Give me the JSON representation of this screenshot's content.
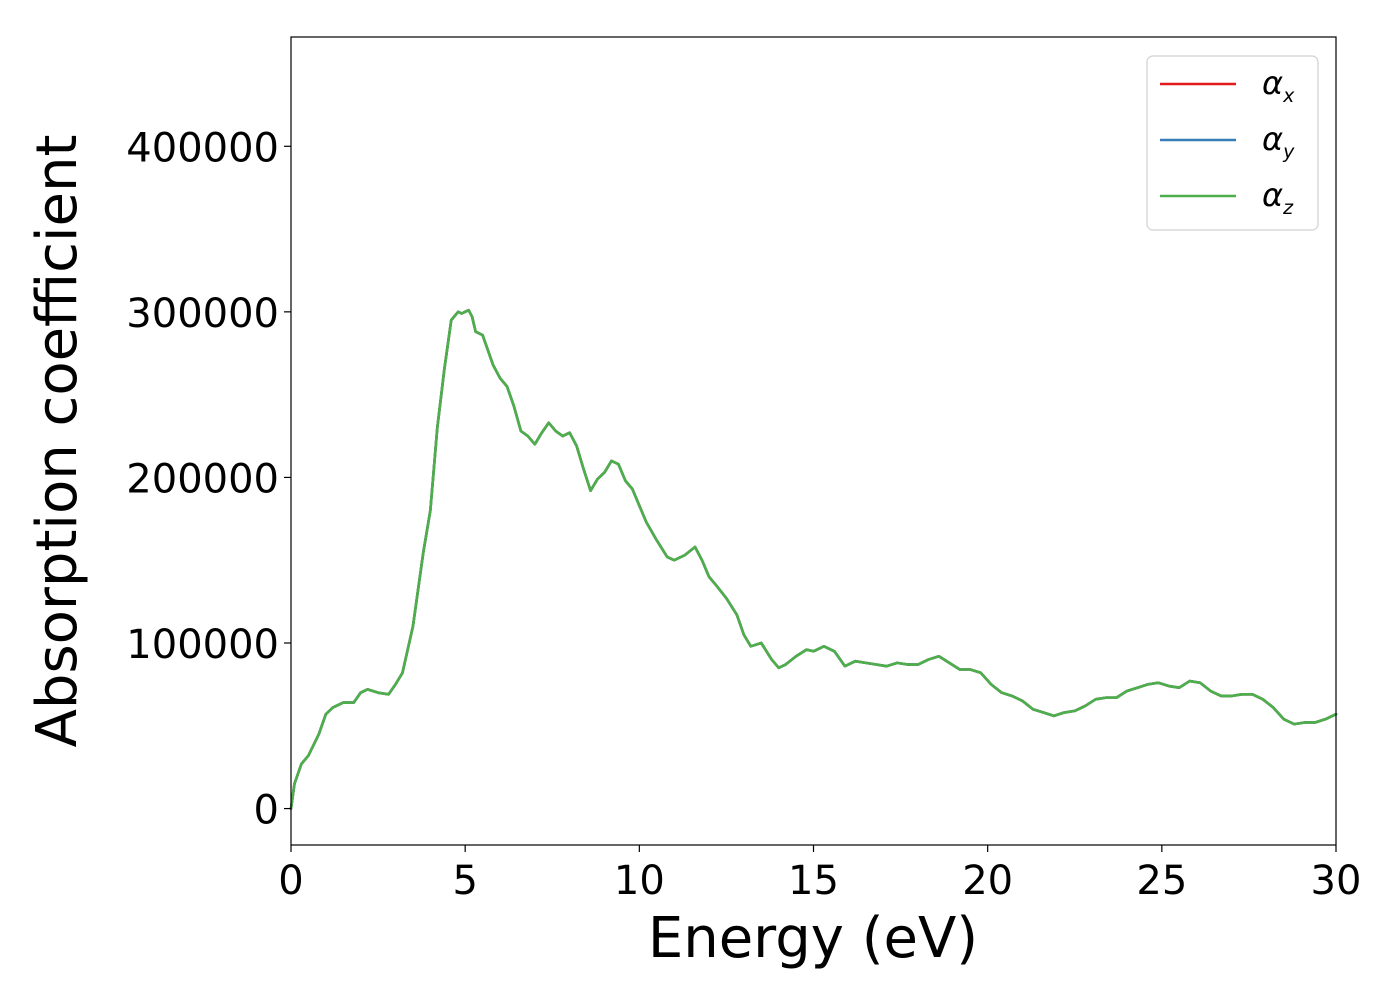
{
  "chart_data": {
    "type": "line",
    "title": "",
    "xlabel": "Energy (eV)",
    "ylabel": "Absorption coefficient",
    "xlim": [
      0,
      30
    ],
    "ylim": [
      -22000,
      466000
    ],
    "xticks": [
      0,
      5,
      10,
      15,
      20,
      25,
      30
    ],
    "xtick_labels": [
      "0",
      "5",
      "10",
      "15",
      "20",
      "25",
      "30"
    ],
    "yticks": [
      0,
      100000,
      200000,
      300000,
      400000
    ],
    "ytick_labels": [
      "0",
      "100000",
      "200000",
      "300000",
      "400000"
    ],
    "grid": false,
    "legend_position": "top-right",
    "x": [
      0,
      0.1,
      0.3,
      0.5,
      0.8,
      1.0,
      1.2,
      1.5,
      1.8,
      2.0,
      2.2,
      2.5,
      2.8,
      3.0,
      3.2,
      3.5,
      3.7,
      3.8,
      4.0,
      4.2,
      4.4,
      4.6,
      4.8,
      4.9,
      5.0,
      5.1,
      5.2,
      5.3,
      5.5,
      5.8,
      6.0,
      6.2,
      6.4,
      6.6,
      6.8,
      7.0,
      7.2,
      7.4,
      7.6,
      7.8,
      8.0,
      8.2,
      8.4,
      8.6,
      8.8,
      9.0,
      9.2,
      9.4,
      9.6,
      9.8,
      10.0,
      10.2,
      10.5,
      10.8,
      11.0,
      11.3,
      11.6,
      11.8,
      12.0,
      12.2,
      12.5,
      12.8,
      13.0,
      13.2,
      13.5,
      13.8,
      14.0,
      14.2,
      14.5,
      14.8,
      15.0,
      15.3,
      15.6,
      15.9,
      16.2,
      16.5,
      16.8,
      17.1,
      17.4,
      17.7,
      18.0,
      18.3,
      18.6,
      18.9,
      19.2,
      19.5,
      19.8,
      20.1,
      20.4,
      20.7,
      21.0,
      21.3,
      21.6,
      21.9,
      22.2,
      22.5,
      22.8,
      23.1,
      23.4,
      23.7,
      24.0,
      24.3,
      24.6,
      24.9,
      25.2,
      25.5,
      25.8,
      26.1,
      26.4,
      26.7,
      27.0,
      27.3,
      27.6,
      27.9,
      28.2,
      28.5,
      28.8,
      29.1,
      29.4,
      29.7,
      30.0
    ],
    "series": [
      {
        "name": "α_x",
        "color": "#e41a1c",
        "values": [
          0,
          15000,
          27000,
          32000,
          45000,
          57000,
          61000,
          64000,
          64000,
          70000,
          72000,
          70000,
          69000,
          75000,
          82000,
          110000,
          140000,
          155000,
          180000,
          230000,
          265000,
          295000,
          300000,
          299000,
          300000,
          301000,
          297000,
          288000,
          286000,
          268000,
          260000,
          255000,
          243000,
          228000,
          225000,
          220000,
          227000,
          233000,
          228000,
          225000,
          227000,
          219000,
          205000,
          192000,
          199000,
          203000,
          210000,
          208000,
          198000,
          193000,
          183000,
          173000,
          162000,
          152000,
          150000,
          153000,
          158000,
          150000,
          140000,
          135000,
          127000,
          117000,
          105000,
          98000,
          100000,
          90000,
          85000,
          87000,
          92000,
          96000,
          95000,
          98000,
          95000,
          86000,
          89000,
          88000,
          87000,
          86000,
          88000,
          87000,
          87000,
          90000,
          92000,
          88000,
          84000,
          84000,
          82000,
          75000,
          70000,
          68000,
          65000,
          60000,
          58000,
          56000,
          58000,
          59000,
          62000,
          66000,
          67000,
          67000,
          71000,
          73000,
          75000,
          76000,
          74000,
          73000,
          77000,
          76000,
          71000,
          68000,
          68000,
          69000,
          69000,
          66000,
          61000,
          54000,
          51000,
          52000,
          52000,
          54000,
          57000
        ]
      },
      {
        "name": "α_y",
        "color": "#377eb8",
        "values": [
          0,
          15000,
          27000,
          32000,
          45000,
          57000,
          61000,
          64000,
          64000,
          70000,
          72000,
          70000,
          69000,
          75000,
          82000,
          110000,
          140000,
          155000,
          180000,
          230000,
          265000,
          295000,
          300000,
          299000,
          300000,
          301000,
          297000,
          288000,
          286000,
          268000,
          260000,
          255000,
          243000,
          228000,
          225000,
          220000,
          227000,
          233000,
          228000,
          225000,
          227000,
          219000,
          205000,
          192000,
          199000,
          203000,
          210000,
          208000,
          198000,
          193000,
          183000,
          173000,
          162000,
          152000,
          150000,
          153000,
          158000,
          150000,
          140000,
          135000,
          127000,
          117000,
          105000,
          98000,
          100000,
          90000,
          85000,
          87000,
          92000,
          96000,
          95000,
          98000,
          95000,
          86000,
          89000,
          88000,
          87000,
          86000,
          88000,
          87000,
          87000,
          90000,
          92000,
          88000,
          84000,
          84000,
          82000,
          75000,
          70000,
          68000,
          65000,
          60000,
          58000,
          56000,
          58000,
          59000,
          62000,
          66000,
          67000,
          67000,
          71000,
          73000,
          75000,
          76000,
          74000,
          73000,
          77000,
          76000,
          71000,
          68000,
          68000,
          69000,
          69000,
          66000,
          61000,
          54000,
          51000,
          52000,
          52000,
          54000,
          57000
        ]
      },
      {
        "name": "α_z",
        "color": "#4daf4a",
        "values": [
          0,
          15000,
          27000,
          32000,
          45000,
          57000,
          61000,
          64000,
          64000,
          70000,
          72000,
          70000,
          69000,
          75000,
          82000,
          110000,
          140000,
          155000,
          180000,
          230000,
          265000,
          295000,
          300000,
          299000,
          300000,
          301000,
          297000,
          288000,
          286000,
          268000,
          260000,
          255000,
          243000,
          228000,
          225000,
          220000,
          227000,
          233000,
          228000,
          225000,
          227000,
          219000,
          205000,
          192000,
          199000,
          203000,
          210000,
          208000,
          198000,
          193000,
          183000,
          173000,
          162000,
          152000,
          150000,
          153000,
          158000,
          150000,
          140000,
          135000,
          127000,
          117000,
          105000,
          98000,
          100000,
          90000,
          85000,
          87000,
          92000,
          96000,
          95000,
          98000,
          95000,
          86000,
          89000,
          88000,
          87000,
          86000,
          88000,
          87000,
          87000,
          90000,
          92000,
          88000,
          84000,
          84000,
          82000,
          75000,
          70000,
          68000,
          65000,
          60000,
          58000,
          56000,
          58000,
          59000,
          62000,
          66000,
          67000,
          67000,
          71000,
          73000,
          75000,
          76000,
          74000,
          73000,
          77000,
          76000,
          71000,
          68000,
          68000,
          69000,
          69000,
          66000,
          61000,
          54000,
          51000,
          52000,
          52000,
          54000,
          57000
        ]
      }
    ]
  }
}
